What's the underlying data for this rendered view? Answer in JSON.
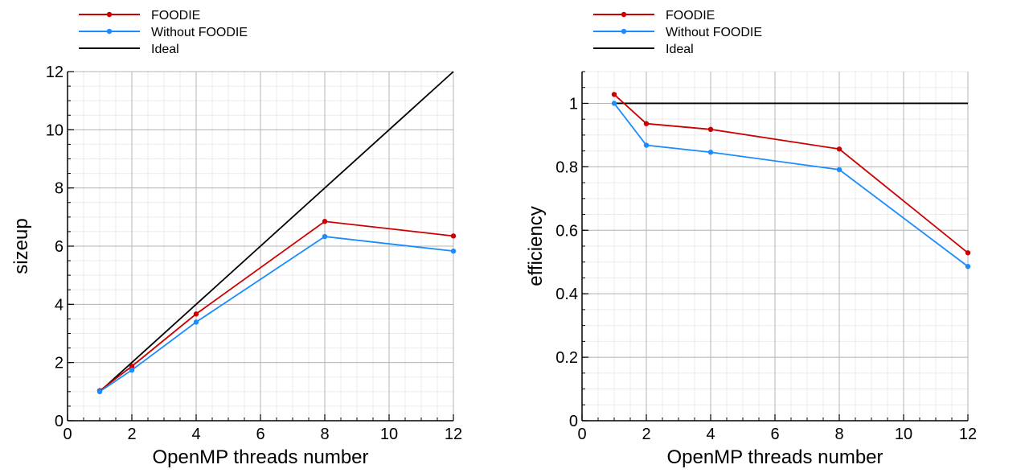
{
  "chart_data": [
    {
      "type": "line",
      "xlabel": "OpenMP threads number",
      "ylabel": "sizeup",
      "xlim": [
        0,
        12
      ],
      "ylim": [
        0,
        12
      ],
      "xticks": [
        0,
        2,
        4,
        6,
        8,
        10,
        12
      ],
      "yticks": [
        0,
        2,
        4,
        6,
        8,
        10,
        12
      ],
      "grid": true,
      "legend_position": "top-left, above plot",
      "series": [
        {
          "name": "FOODIE",
          "color": "#cc0000",
          "markers": true,
          "x": [
            1,
            2,
            4,
            8,
            12
          ],
          "y": [
            1.03,
            1.87,
            3.67,
            6.85,
            6.35
          ]
        },
        {
          "name": "Without FOODIE",
          "color": "#1a8cff",
          "markers": true,
          "x": [
            1,
            2,
            4,
            8,
            12
          ],
          "y": [
            1.0,
            1.74,
            3.39,
            6.33,
            5.83
          ]
        },
        {
          "name": "Ideal",
          "color": "#000000",
          "markers": false,
          "x": [
            1,
            12
          ],
          "y": [
            1,
            12
          ]
        }
      ]
    },
    {
      "type": "line",
      "xlabel": "OpenMP threads number",
      "ylabel": "efficiency",
      "xlim": [
        0,
        12
      ],
      "ylim": [
        0,
        1.1
      ],
      "xticks": [
        0,
        2,
        4,
        6,
        8,
        10,
        12
      ],
      "yticks": [
        0,
        0.2,
        0.4,
        0.6,
        0.8,
        1
      ],
      "grid": true,
      "legend_position": "top-left, above plot",
      "series": [
        {
          "name": "FOODIE",
          "color": "#cc0000",
          "markers": true,
          "x": [
            1,
            2,
            4,
            8,
            12
          ],
          "y": [
            1.028,
            0.936,
            0.918,
            0.856,
            0.529
          ]
        },
        {
          "name": "Without FOODIE",
          "color": "#1a8cff",
          "markers": true,
          "x": [
            1,
            2,
            4,
            8,
            12
          ],
          "y": [
            1.0,
            0.868,
            0.846,
            0.791,
            0.486
          ]
        },
        {
          "name": "Ideal",
          "color": "#000000",
          "markers": false,
          "x": [
            1,
            12
          ],
          "y": [
            1,
            1
          ]
        }
      ]
    }
  ]
}
